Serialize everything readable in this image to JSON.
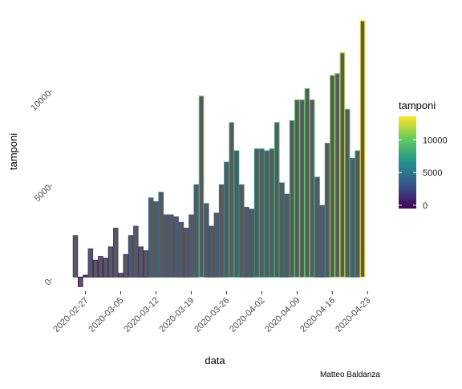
{
  "chart_data": {
    "type": "bar",
    "title": "",
    "xlabel": "data",
    "ylabel": "tamponi",
    "caption": "Matteo Baldanza",
    "x": [
      "2020-02-25",
      "2020-02-26",
      "2020-02-27",
      "2020-02-28",
      "2020-02-29",
      "2020-03-01",
      "2020-03-02",
      "2020-03-03",
      "2020-03-04",
      "2020-03-05",
      "2020-03-06",
      "2020-03-07",
      "2020-03-08",
      "2020-03-09",
      "2020-03-10",
      "2020-03-11",
      "2020-03-12",
      "2020-03-13",
      "2020-03-14",
      "2020-03-15",
      "2020-03-16",
      "2020-03-17",
      "2020-03-18",
      "2020-03-19",
      "2020-03-20",
      "2020-03-21",
      "2020-03-22",
      "2020-03-23",
      "2020-03-24",
      "2020-03-25",
      "2020-03-26",
      "2020-03-27",
      "2020-03-28",
      "2020-03-29",
      "2020-03-30",
      "2020-03-31",
      "2020-04-01",
      "2020-04-02",
      "2020-04-03",
      "2020-04-04",
      "2020-04-05",
      "2020-04-06",
      "2020-04-07",
      "2020-04-08",
      "2020-04-09",
      "2020-04-10",
      "2020-04-11",
      "2020-04-12",
      "2020-04-13",
      "2020-04-14",
      "2020-04-15",
      "2020-04-16",
      "2020-04-17",
      "2020-04-18",
      "2020-04-19",
      "2020-04-20",
      "2020-04-21",
      "2020-04-22"
    ],
    "values": [
      2200,
      -500,
      100,
      1500,
      900,
      1100,
      1000,
      1600,
      2600,
      200,
      1200,
      2200,
      2700,
      1600,
      1400,
      4200,
      4000,
      4500,
      3300,
      3300,
      3200,
      2900,
      2600,
      3300,
      4900,
      9600,
      3900,
      2700,
      3400,
      4900,
      6100,
      8200,
      6700,
      4900,
      3700,
      3600,
      6800,
      6800,
      6700,
      6800,
      8200,
      5000,
      4400,
      8300,
      9400,
      9400,
      10000,
      9400,
      5300,
      3800,
      7100,
      10700,
      10800,
      11900,
      8900,
      6300,
      6700,
      13600
    ],
    "ylim": [
      -900,
      14300
    ],
    "y_ticks": [
      0,
      5000,
      10000
    ],
    "y_tick_labels": [
      "0-",
      "5000-",
      "10000-"
    ],
    "x_tick_labels": [
      "2020-02-27",
      "2020-03-05",
      "2020-03-12",
      "2020-03-19",
      "2020-03-26",
      "2020-04-02",
      "2020-04-09",
      "2020-04-16",
      "2020-04-23"
    ],
    "x_tick_dates": [
      "2020-02-27",
      "2020-03-05",
      "2020-03-12",
      "2020-03-19",
      "2020-03-26",
      "2020-04-02",
      "2020-04-09",
      "2020-04-16",
      "2020-04-23"
    ],
    "fill_color": "#595959",
    "outline_colormap": "viridis",
    "grid": false,
    "legend": {
      "title": "tamponi",
      "placement": "right",
      "type": "colorbar",
      "range": [
        -500,
        13600
      ],
      "ticks": [
        0,
        5000,
        10000
      ],
      "labels": [
        "0",
        "5000",
        "10000"
      ],
      "colors": [
        "#440154",
        "#3b528b",
        "#21918c",
        "#5ec962",
        "#fde725"
      ]
    }
  }
}
